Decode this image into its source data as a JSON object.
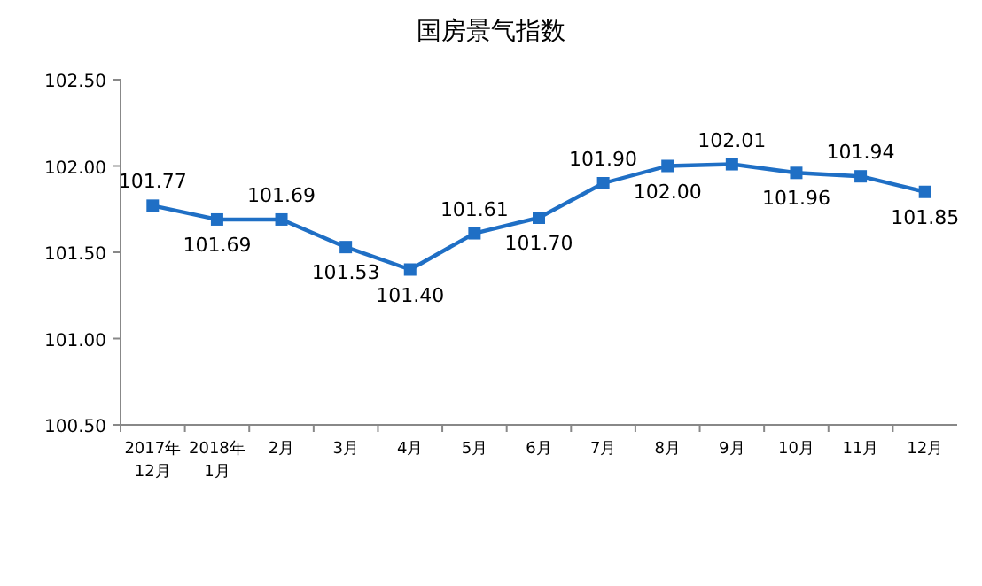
{
  "chart_data": {
    "type": "line",
    "title": "国房景气指数",
    "categories": [
      "2017年 12月",
      "2018年 1月",
      "2月",
      "3月",
      "4月",
      "5月",
      "6月",
      "7月",
      "8月",
      "9月",
      "10月",
      "11月",
      "12月"
    ],
    "series": [
      {
        "color": "#1f6fc5",
        "values": [
          101.77,
          101.69,
          101.69,
          101.53,
          101.4,
          101.61,
          101.7,
          101.9,
          102.0,
          102.01,
          101.96,
          101.94,
          101.85
        ],
        "value_labels": [
          "101.77",
          "101.69",
          "101.69",
          "101.53",
          "101.40",
          "101.61",
          "101.70",
          "101.90",
          "102.00",
          "102.01",
          "101.96",
          "101.94",
          "101.85"
        ]
      }
    ],
    "ylim": [
      100.5,
      102.5
    ],
    "yticks": [
      {
        "value": 100.5,
        "label": "100.50"
      },
      {
        "value": 101,
        "label": "101.00"
      },
      {
        "value": 101.5,
        "label": "101.50"
      },
      {
        "value": 102,
        "label": "102.00"
      },
      {
        "value": 102.5,
        "label": "102.50"
      }
    ],
    "marker": "square",
    "line_style": "solid",
    "grid": false
  }
}
